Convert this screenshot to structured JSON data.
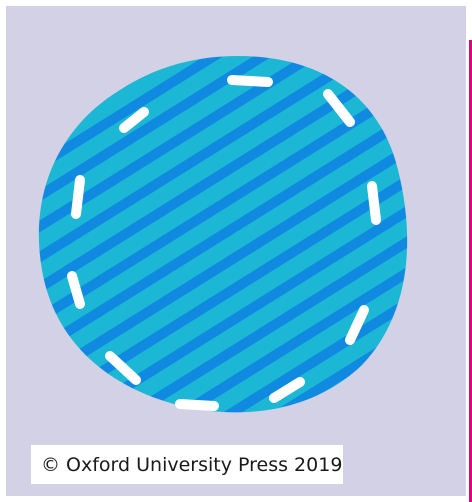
{
  "image": {
    "copyright": "© Oxford University Press 2019",
    "colors": {
      "background": "#d2d1e5",
      "edge_line": "#e4007a",
      "blob_light": "#1cb7d5",
      "blob_stripe": "#0f8ae0",
      "stitch": "#ffffff"
    },
    "icons": [
      "striped-blob-shape",
      "dashed-stitch-outline"
    ]
  }
}
